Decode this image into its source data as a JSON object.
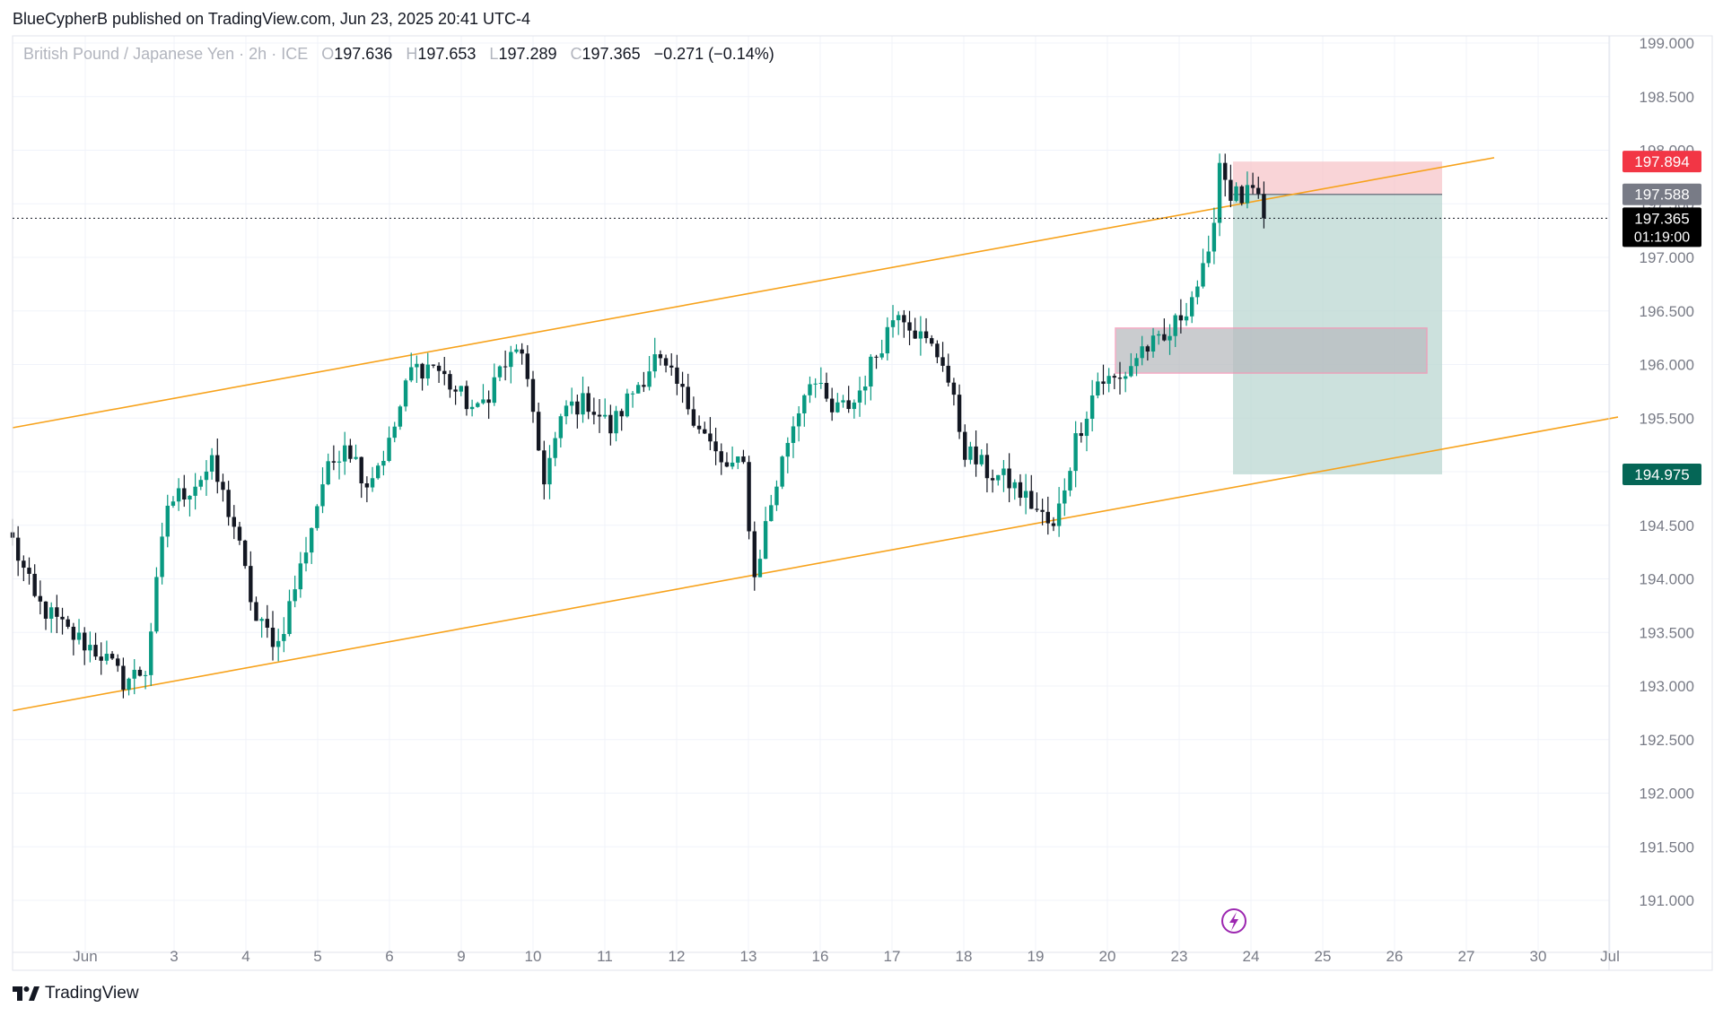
{
  "header": {
    "published_by": "BlueCypherB published on TradingView.com, Jun 23, 2025 20:41 UTC-4"
  },
  "symbol": {
    "name": "British Pound / Japanese Yen · 2h · ICE",
    "o_label": "O",
    "o_value": "197.636",
    "h_label": "H",
    "h_value": "197.653",
    "l_label": "L",
    "l_value": "197.289",
    "c_label": "C",
    "c_value": "197.365",
    "change": "−0.271 (−0.14%)"
  },
  "footer": {
    "brand": "TradingView",
    "logo_icon": "tradingview-logo-icon"
  },
  "colors": {
    "up": "#089981",
    "down": "#131722",
    "channel": "#f7a21b",
    "stop_zone": "#f7c5c9",
    "target_zone": "#b6d4ce",
    "demand_zone": "#b9bcc0",
    "stop_label": "#f23645",
    "target_label": "#056656",
    "entry_label": "#787b86",
    "last_price_label": "#000000",
    "grid": "#f0f3fa",
    "axis_text": "#787b86",
    "event_icon": "#9c27b0"
  },
  "chart_data": {
    "type": "candlestick",
    "timeframe": "2h",
    "ylim": [
      190.6,
      199.1
    ],
    "y_ticks": [
      "199.000",
      "198.500",
      "198.000",
      "197.500",
      "197.000",
      "196.500",
      "196.000",
      "195.500",
      "195.000",
      "194.500",
      "194.000",
      "193.500",
      "193.000",
      "192.500",
      "192.000",
      "191.500",
      "191.000"
    ],
    "x_ticks": [
      "Jun",
      "3",
      "4",
      "5",
      "6",
      "9",
      "10",
      "11",
      "12",
      "13",
      "16",
      "17",
      "18",
      "19",
      "20",
      "23",
      "24",
      "25",
      "26",
      "27",
      "30",
      "Jul"
    ],
    "grid": true,
    "channel": {
      "upper": [
        {
          "x": "start",
          "y": 195.41
        },
        {
          "x": "Jun 27",
          "y": 197.93
        }
      ],
      "lower": [
        {
          "x": "start",
          "y": 192.77
        },
        {
          "x": "Jul",
          "y": 195.51
        }
      ]
    },
    "position": {
      "type": "short",
      "entry": 197.588,
      "stop": 197.894,
      "target": 194.975,
      "from": "Jun 23",
      "to": "Jun 27"
    },
    "zone": {
      "top": 196.34,
      "bottom": 195.92,
      "from": "Jun 20",
      "to": "Jun 26"
    },
    "price_labels": {
      "stop": "197.894",
      "entry": "197.588",
      "last": "197.365",
      "countdown": "01:19:00",
      "target": "194.975"
    },
    "last_price": 197.365,
    "anchors": [
      {
        "t": 0,
        "p": 194.35
      },
      {
        "t": 4,
        "p": 193.8
      },
      {
        "t": 10,
        "p": 193.5
      },
      {
        "t": 16,
        "p": 193.3
      },
      {
        "t": 20,
        "p": 193.05
      },
      {
        "t": 24,
        "p": 193.15
      },
      {
        "t": 28,
        "p": 194.7
      },
      {
        "t": 32,
        "p": 194.85
      },
      {
        "t": 36,
        "p": 195.05
      },
      {
        "t": 40,
        "p": 194.5
      },
      {
        "t": 44,
        "p": 193.6
      },
      {
        "t": 48,
        "p": 193.4
      },
      {
        "t": 52,
        "p": 194.1
      },
      {
        "t": 56,
        "p": 194.9
      },
      {
        "t": 60,
        "p": 195.3
      },
      {
        "t": 64,
        "p": 194.9
      },
      {
        "t": 68,
        "p": 195.25
      },
      {
        "t": 72,
        "p": 195.95
      },
      {
        "t": 76,
        "p": 196.0
      },
      {
        "t": 80,
        "p": 195.75
      },
      {
        "t": 84,
        "p": 195.55
      },
      {
        "t": 88,
        "p": 195.95
      },
      {
        "t": 92,
        "p": 196.15
      },
      {
        "t": 94,
        "p": 195.45
      },
      {
        "t": 96,
        "p": 194.95
      },
      {
        "t": 100,
        "p": 195.6
      },
      {
        "t": 104,
        "p": 195.65
      },
      {
        "t": 108,
        "p": 195.4
      },
      {
        "t": 112,
        "p": 195.75
      },
      {
        "t": 116,
        "p": 196.05
      },
      {
        "t": 120,
        "p": 195.8
      },
      {
        "t": 124,
        "p": 195.45
      },
      {
        "t": 128,
        "p": 195.05
      },
      {
        "t": 132,
        "p": 195.05
      },
      {
        "t": 134,
        "p": 194.0
      },
      {
        "t": 136,
        "p": 194.5
      },
      {
        "t": 140,
        "p": 195.3
      },
      {
        "t": 144,
        "p": 195.9
      },
      {
        "t": 148,
        "p": 195.55
      },
      {
        "t": 152,
        "p": 195.65
      },
      {
        "t": 156,
        "p": 196.1
      },
      {
        "t": 160,
        "p": 196.55
      },
      {
        "t": 164,
        "p": 196.25
      },
      {
        "t": 168,
        "p": 196.05
      },
      {
        "t": 172,
        "p": 195.2
      },
      {
        "t": 176,
        "p": 195.0
      },
      {
        "t": 180,
        "p": 194.9
      },
      {
        "t": 184,
        "p": 194.7
      },
      {
        "t": 188,
        "p": 194.45
      },
      {
        "t": 192,
        "p": 195.3
      },
      {
        "t": 196,
        "p": 195.85
      },
      {
        "t": 200,
        "p": 195.85
      },
      {
        "t": 204,
        "p": 196.15
      },
      {
        "t": 208,
        "p": 196.2
      },
      {
        "t": 212,
        "p": 196.55
      },
      {
        "t": 216,
        "p": 196.95
      },
      {
        "t": 218,
        "p": 197.9
      },
      {
        "t": 220,
        "p": 197.6
      },
      {
        "t": 222,
        "p": 197.55
      },
      {
        "t": 224,
        "p": 197.6
      },
      {
        "t": 226,
        "p": 197.365
      }
    ]
  }
}
